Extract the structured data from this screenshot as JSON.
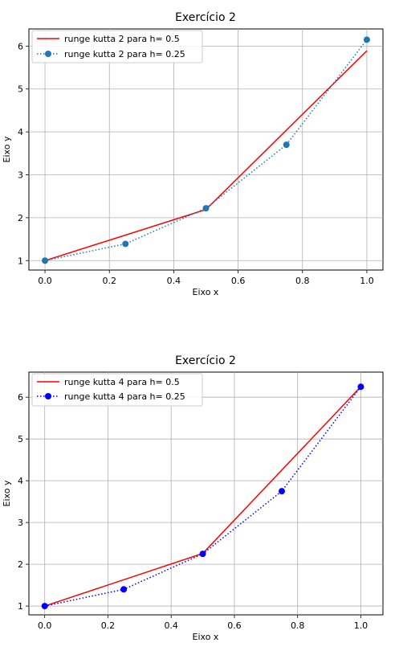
{
  "chart_data": [
    {
      "type": "line",
      "title": "Exercício 2",
      "xlabel": "Eixo x",
      "ylabel": "Eixo y",
      "xlim": [
        -0.05,
        1.05
      ],
      "ylim": [
        0.78,
        6.4
      ],
      "xticks": [
        "0.0",
        "0.2",
        "0.4",
        "0.6",
        "0.8",
        "1.0"
      ],
      "yticks": [
        "1",
        "2",
        "3",
        "4",
        "5",
        "6"
      ],
      "grid": true,
      "legend_position": "top-left",
      "series": [
        {
          "name": "runge kutta 2 para h= 0.5",
          "color": "#ff0000",
          "style": "solid",
          "marker": "none",
          "x": [
            0.0,
            0.5,
            1.0
          ],
          "y": [
            1.0,
            2.19,
            5.89
          ]
        },
        {
          "name": "runge kutta 2 para h= 0.25",
          "color": "#1f77b4",
          "style": "dotted",
          "marker": "circle",
          "x": [
            0.0,
            0.25,
            0.5,
            0.75,
            1.0
          ],
          "y": [
            1.0,
            1.39,
            2.22,
            3.7,
            6.15
          ]
        }
      ]
    },
    {
      "type": "line",
      "title": "Exercício 2",
      "xlabel": "Eixo x",
      "ylabel": "Eixo y",
      "xlim": [
        -0.05,
        1.07
      ],
      "ylim": [
        0.79,
        6.6
      ],
      "xticks": [
        "0.0",
        "0.2",
        "0.4",
        "0.6",
        "0.8",
        "1.0"
      ],
      "yticks": [
        "1",
        "2",
        "3",
        "4",
        "5",
        "6"
      ],
      "grid": true,
      "legend_position": "top-left",
      "series": [
        {
          "name": "runge kutta 4 para h= 0.5",
          "color": "#ff0000",
          "style": "solid",
          "marker": "none",
          "x": [
            0.0,
            0.5,
            1.0
          ],
          "y": [
            1.0,
            2.26,
            6.25
          ]
        },
        {
          "name": "runge kutta 4 para h= 0.25",
          "color": "#0000ff",
          "style": "dotted",
          "marker": "circle",
          "x": [
            0.0,
            0.25,
            0.5,
            0.75,
            1.0
          ],
          "y": [
            1.0,
            1.4,
            2.25,
            3.75,
            6.25
          ]
        }
      ]
    }
  ]
}
